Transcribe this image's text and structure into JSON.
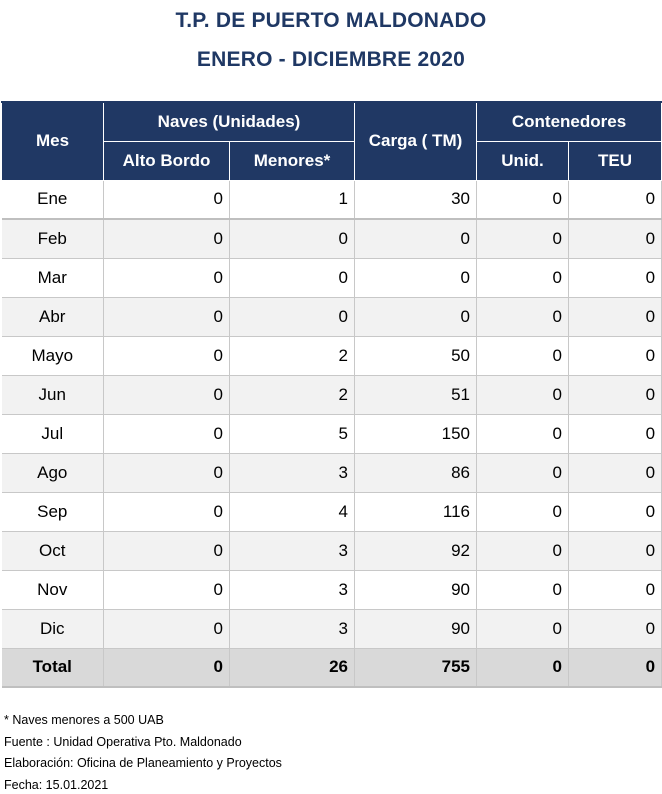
{
  "title_line1": "T.P. DE PUERTO MALDONADO",
  "title_line2": "ENERO - DICIEMBRE 2020",
  "header": {
    "mes": "Mes",
    "naves": "Naves (Unidades)",
    "carga": "Carga ( TM)",
    "contenedores": "Contenedores",
    "alto_bordo": "Alto Bordo",
    "menores": "Menores*",
    "unid": "Unid.",
    "teu": "TEU"
  },
  "rows": [
    {
      "mes": "Ene",
      "alto": "0",
      "men": "1",
      "carga": "30",
      "unid": "0",
      "teu": "0"
    },
    {
      "mes": "Feb",
      "alto": "0",
      "men": "0",
      "carga": "0",
      "unid": "0",
      "teu": "0"
    },
    {
      "mes": "Mar",
      "alto": "0",
      "men": "0",
      "carga": "0",
      "unid": "0",
      "teu": "0"
    },
    {
      "mes": "Abr",
      "alto": "0",
      "men": "0",
      "carga": "0",
      "unid": "0",
      "teu": "0"
    },
    {
      "mes": "Mayo",
      "alto": "0",
      "men": "2",
      "carga": "50",
      "unid": "0",
      "teu": "0"
    },
    {
      "mes": "Jun",
      "alto": "0",
      "men": "2",
      "carga": "51",
      "unid": "0",
      "teu": "0"
    },
    {
      "mes": "Jul",
      "alto": "0",
      "men": "5",
      "carga": "150",
      "unid": "0",
      "teu": "0"
    },
    {
      "mes": "Ago",
      "alto": "0",
      "men": "3",
      "carga": "86",
      "unid": "0",
      "teu": "0"
    },
    {
      "mes": "Sep",
      "alto": "0",
      "men": "4",
      "carga": "116",
      "unid": "0",
      "teu": "0"
    },
    {
      "mes": "Oct",
      "alto": "0",
      "men": "3",
      "carga": "92",
      "unid": "0",
      "teu": "0"
    },
    {
      "mes": "Nov",
      "alto": "0",
      "men": "3",
      "carga": "90",
      "unid": "0",
      "teu": "0"
    },
    {
      "mes": "Dic",
      "alto": "0",
      "men": "3",
      "carga": "90",
      "unid": "0",
      "teu": "0"
    }
  ],
  "total": {
    "mes": "Total",
    "alto": "0",
    "men": "26",
    "carga": "755",
    "unid": "0",
    "teu": "0"
  },
  "notes": [
    "* Naves menores a 500 UAB",
    "Fuente : Unidad Operativa Pto. Maldonado",
    "Elaboración: Oficina de Planeamiento y Proyectos",
    "Fecha: 15.01.2021"
  ]
}
